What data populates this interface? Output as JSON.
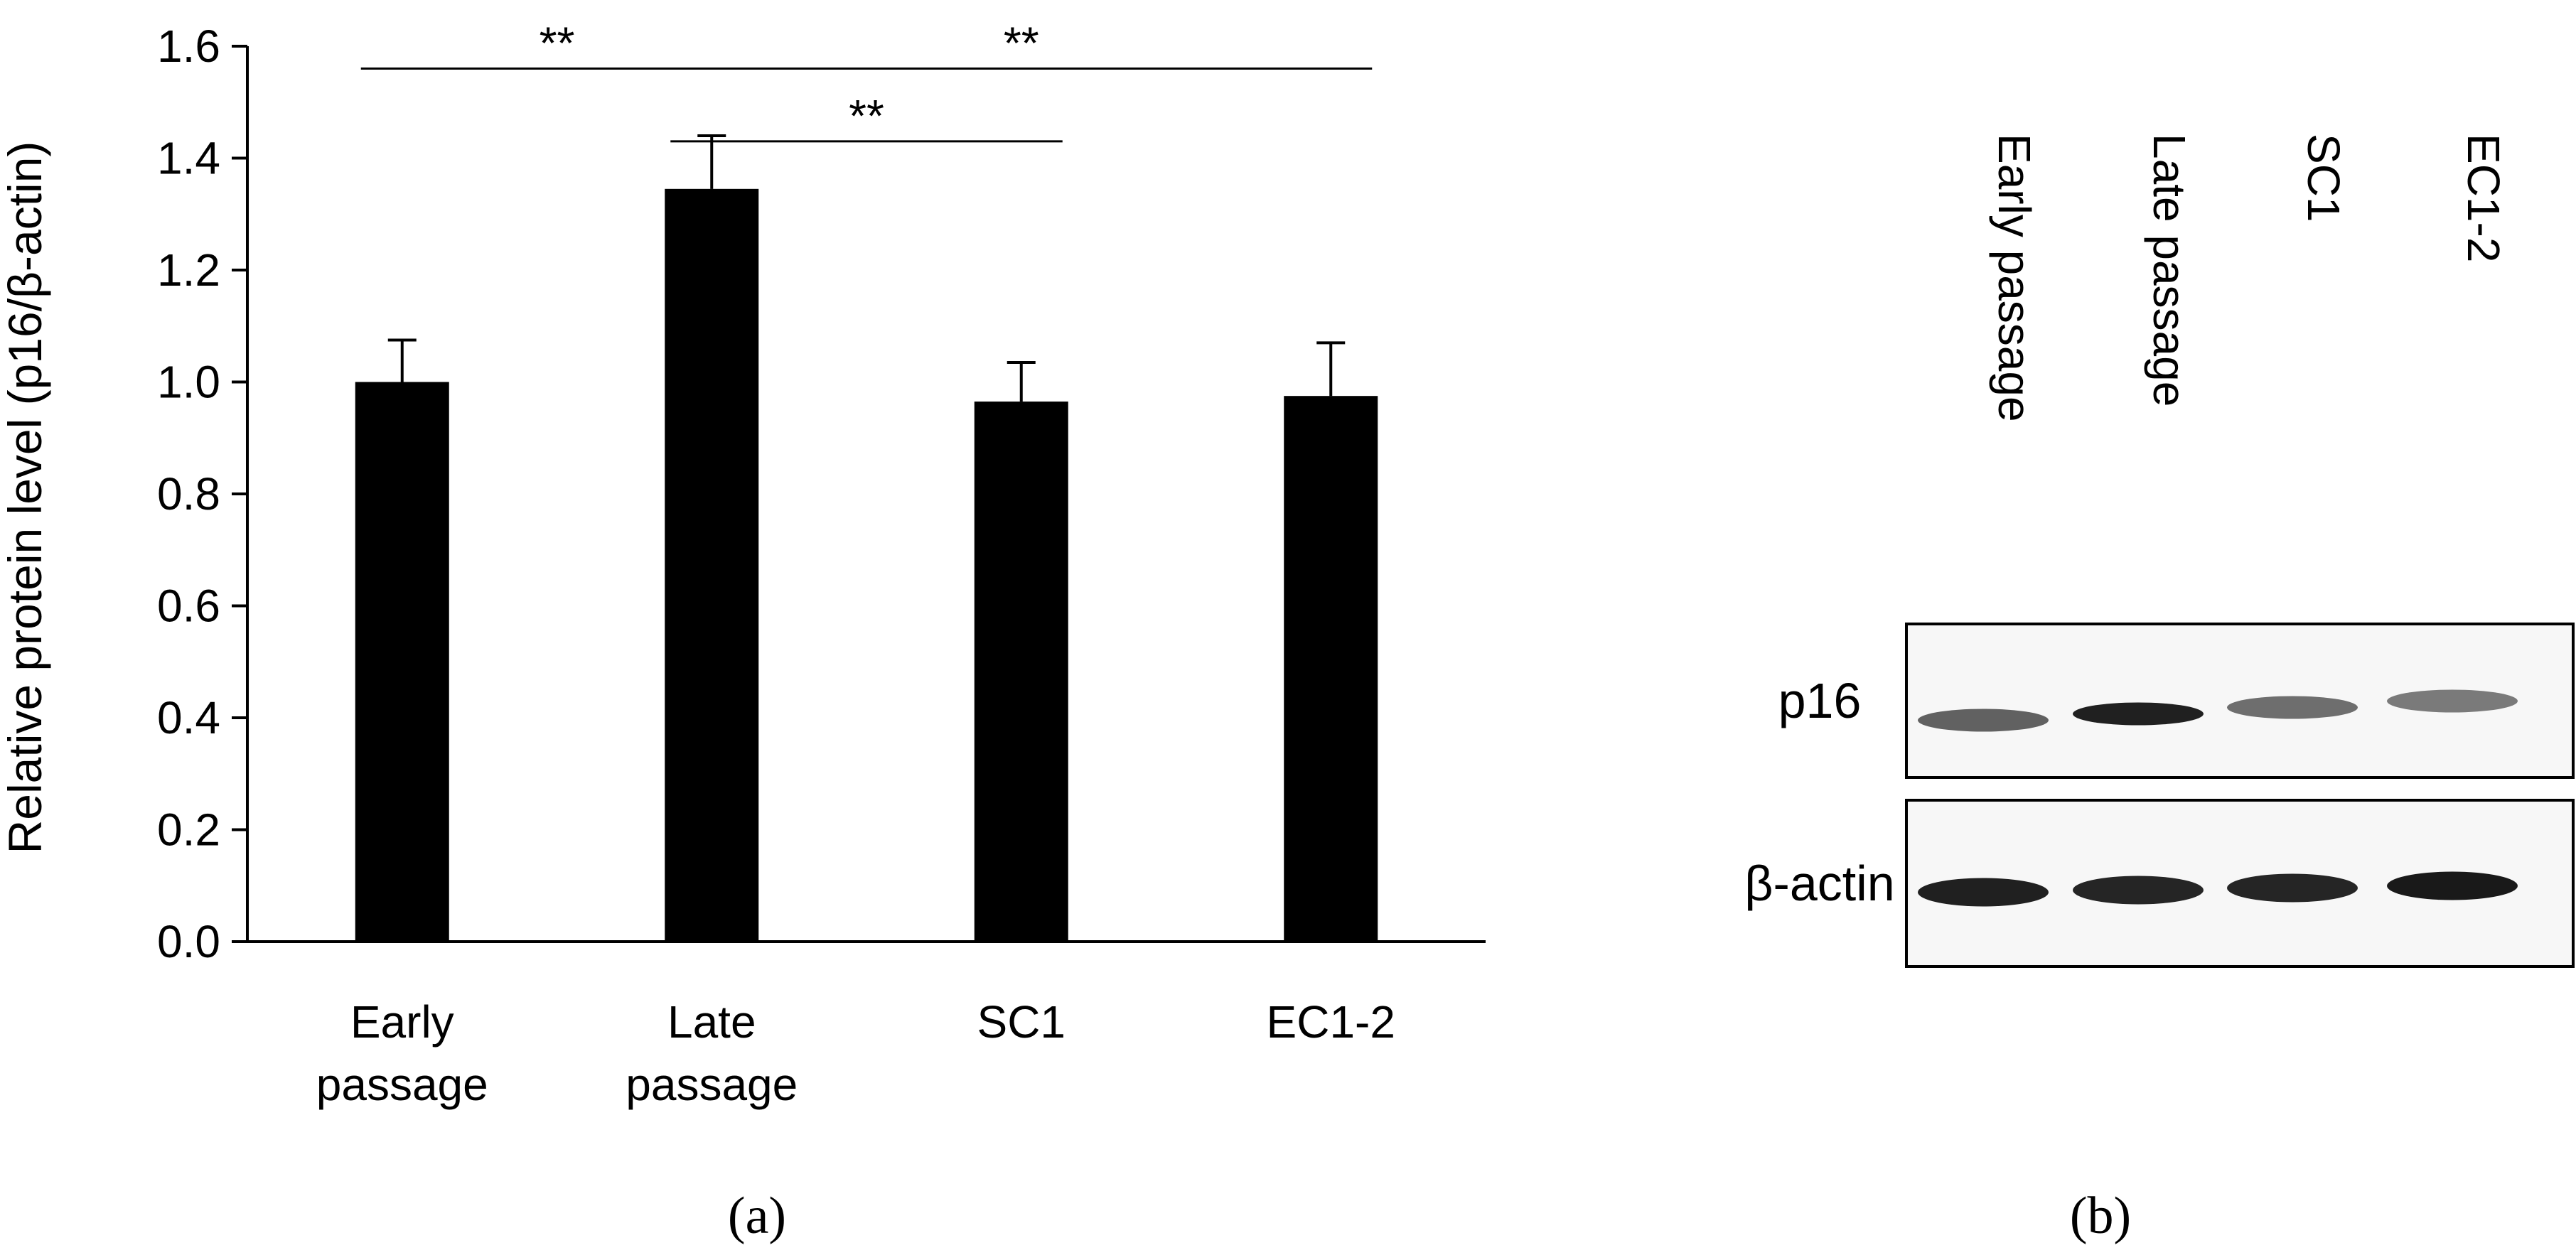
{
  "chart_data": {
    "type": "bar",
    "categories": [
      [
        "Early",
        "passage"
      ],
      [
        "Late",
        "passage"
      ],
      [
        "SC1"
      ],
      [
        "EC1-2"
      ]
    ],
    "values": [
      1.0,
      1.345,
      0.965,
      0.975
    ],
    "errors": [
      0.075,
      0.095,
      0.07,
      0.095
    ],
    "ylabel": "Relative protein level (p16/β-actin)",
    "xlabel": "",
    "ylim": [
      0.0,
      1.6
    ],
    "yticks": [
      "0.0",
      "0.2",
      "0.4",
      "0.6",
      "0.8",
      "1.0",
      "1.2",
      "1.4",
      "1.6"
    ],
    "bar_color": "#000000",
    "grid": false,
    "significance": [
      {
        "from": 0,
        "to": 1,
        "label": "**",
        "level": 1.56
      },
      {
        "from": 1,
        "to": 2,
        "label": "**",
        "level": 1.43
      },
      {
        "from": 1,
        "to": 3,
        "label": "**",
        "level": 1.56
      }
    ]
  },
  "western_blot": {
    "lane_labels": [
      "Early passage",
      "Late passage",
      "SC1",
      "EC1-2"
    ],
    "rows": [
      {
        "label": "p16",
        "intensities": [
          0.65,
          0.92,
          0.6,
          0.55
        ]
      },
      {
        "label": "β-actin",
        "intensities": [
          0.92,
          0.9,
          0.9,
          0.95
        ]
      }
    ]
  },
  "panels": {
    "a": "(a)",
    "b": "(b)"
  }
}
